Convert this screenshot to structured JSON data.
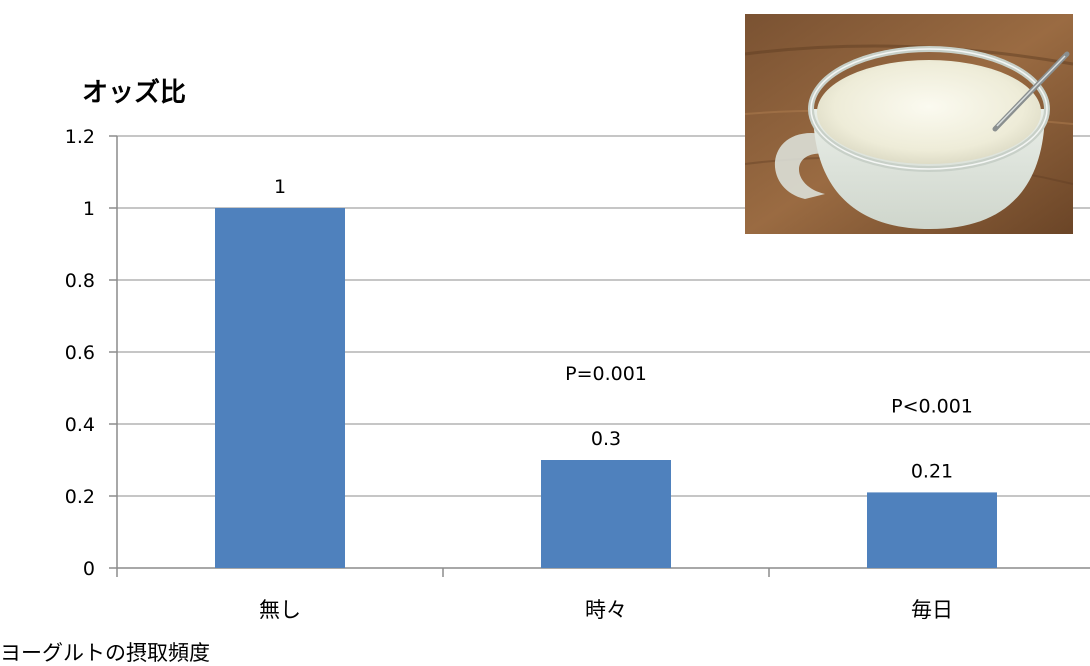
{
  "chart_data": {
    "type": "bar",
    "title": "",
    "ylabel": "オッズ比",
    "xlabel": "ヨーグルトの摂取頻度",
    "categories": [
      "無し",
      "時々",
      "毎日"
    ],
    "values": [
      1,
      0.3,
      0.21
    ],
    "value_labels": [
      "1",
      "0.3",
      "0.21"
    ],
    "annotations": [
      "",
      "P=0.001",
      "P<0.001"
    ],
    "ylim": [
      0,
      1.2
    ],
    "yticks": [
      0,
      0.2,
      0.4,
      0.6,
      0.8,
      1,
      1.2
    ],
    "ytick_labels": [
      "0",
      "0.2",
      "0.4",
      "0.6",
      "0.8",
      "1",
      "1.2"
    ],
    "grid": true,
    "legend": "none",
    "bar_color": "#4f81bd"
  },
  "image": {
    "name": "yogurt-cup-photo"
  }
}
